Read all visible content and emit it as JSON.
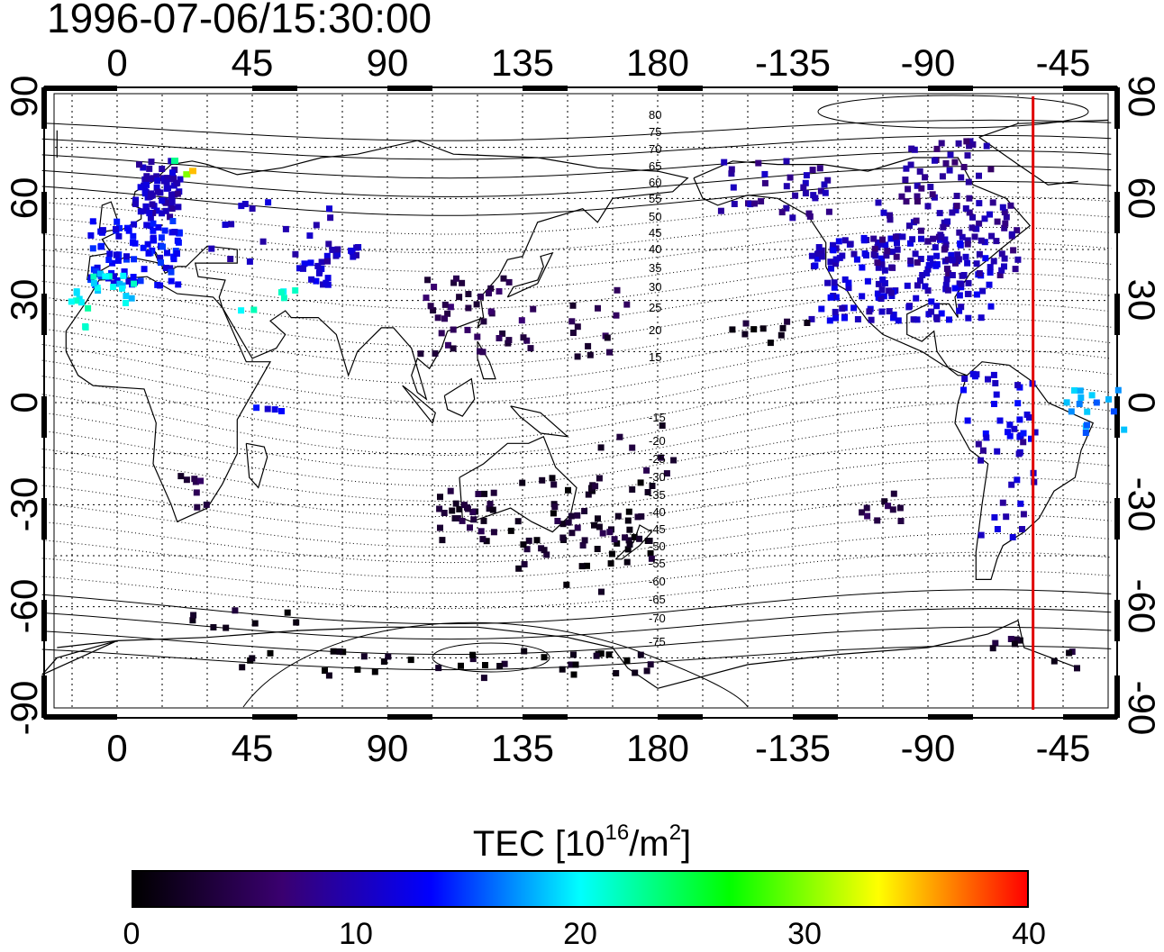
{
  "timestamp": "1996-07-06/15:30:00",
  "map": {
    "lon_ticks_top": [
      "0",
      "45",
      "90",
      "135",
      "180",
      "-135",
      "-90",
      "-45"
    ],
    "lon_ticks_bottom": [
      "0",
      "45",
      "90",
      "135",
      "180",
      "-135",
      "-90",
      "-45"
    ],
    "lat_ticks_left": [
      "90",
      "60",
      "30",
      "0",
      "-30",
      "-60",
      "-90"
    ],
    "lat_ticks_right": [
      "90",
      "60",
      "30",
      "0",
      "-30",
      "-60",
      "-90"
    ],
    "geomag_lat_labels": [
      "80",
      "75",
      "70",
      "65",
      "60",
      "55",
      "50",
      "45",
      "40",
      "35",
      "30",
      "25",
      "20",
      "15",
      "-15",
      "-20",
      "-25",
      "-30",
      "-35",
      "-40",
      "-45",
      "-50",
      "-55",
      "-60",
      "-65",
      "-70",
      "-75"
    ],
    "terminator_longitude": -55,
    "terminator_color": "#e00000",
    "longitude_range": [
      -25,
      333
    ],
    "latitude_range": [
      -90,
      90
    ]
  },
  "colorbar": {
    "title_prefix": "TEC  [10",
    "title_exp1": "16",
    "title_mid": "/m",
    "title_exp2": "2",
    "title_suffix": "]",
    "ticks": [
      "0",
      "10",
      "20",
      "30",
      "40"
    ],
    "range": [
      0,
      40
    ],
    "colors": [
      "#000000",
      "#3a0070",
      "#0000ff",
      "#00ffff",
      "#00ff00",
      "#ffff00",
      "#ff0000"
    ]
  }
}
